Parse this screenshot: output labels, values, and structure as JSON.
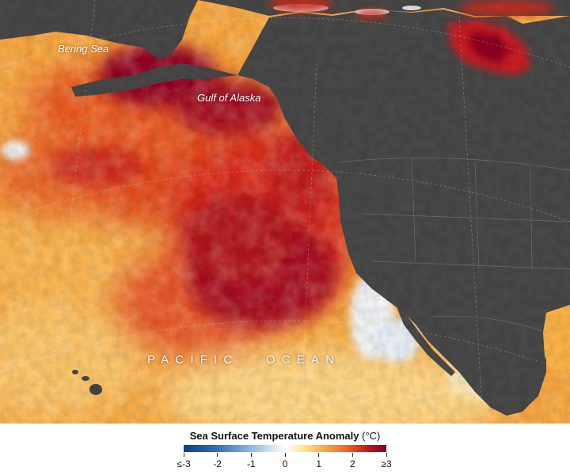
{
  "map": {
    "labels": {
      "bering": "Bering Sea",
      "alaska": "Gulf of Alaska",
      "pacific": "PACIFIC OCEAN"
    },
    "colors": {
      "land": "#4a4a4a",
      "land_dark": "#3a3a3a",
      "ocean_warm_base": "#f7a33c",
      "ocean_hot": "#b8101e",
      "ocean_very_hot": "#8a0420",
      "ocean_cool": "#fde3a0",
      "ocean_neutral": "#eef2f8"
    }
  },
  "legend": {
    "title_bold": "Sea Surface Temperature Anomaly",
    "title_unit": " (°C)",
    "min_value": -3,
    "max_value": 3,
    "ticks": [
      "≤-3",
      "-2",
      "-1",
      "0",
      "1",
      "2",
      "≥3"
    ]
  }
}
